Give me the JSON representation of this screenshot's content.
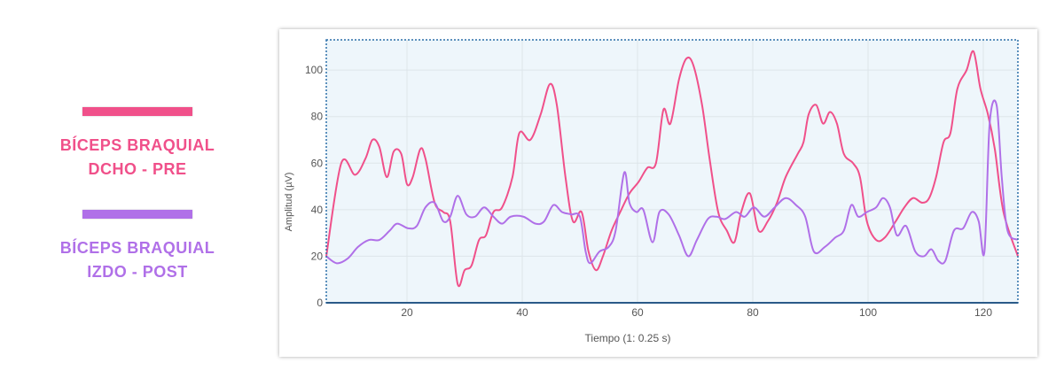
{
  "chart_data": {
    "type": "line",
    "xlabel": "Tiempo (1: 0.25 s)",
    "ylabel": "Amplitud (µV)",
    "xlim": [
      6,
      126
    ],
    "ylim": [
      0,
      113
    ],
    "xticks": [
      20,
      40,
      60,
      80,
      100,
      120
    ],
    "yticks": [
      0,
      20,
      40,
      60,
      80,
      100
    ],
    "grid": true,
    "legend": "left",
    "series": [
      {
        "name": "BÍCEPS BRAQUIAL DCHO - PRE",
        "color": "#f0508a",
        "x": [
          6,
          8.6,
          11,
          12.8,
          14,
          15.2,
          16.5,
          17.7,
          19,
          20,
          21,
          22.3,
          23.2,
          24.8,
          26.3,
          27.5,
          28.8,
          30,
          31.2,
          32.5,
          33.7,
          35,
          36.5,
          38.3,
          39.5,
          41.4,
          43.2,
          44.8,
          46,
          47.5,
          48.8,
          50.3,
          51.5,
          52.8,
          54,
          55.5,
          57,
          58.6,
          60.2,
          61.7,
          63.2,
          64.5,
          65.7,
          67.2,
          68.5,
          69.7,
          71.2,
          72.5,
          74,
          75.5,
          76.8,
          78,
          79.5,
          81,
          82.6,
          84.2,
          85.7,
          87.8,
          88.8,
          89.7,
          91,
          92.2,
          93.4,
          94.6,
          95.8,
          97.4,
          98.6,
          99.8,
          101.4,
          102.9,
          104.8,
          106.3,
          107.8,
          109.4,
          110.6,
          111.8,
          113.1,
          114.3,
          115.5,
          117.1,
          118.3,
          119.5,
          120.8,
          122,
          123.5,
          126
        ],
        "values": [
          20,
          60,
          55,
          62,
          70,
          67,
          54,
          65,
          64,
          51,
          54,
          66,
          62,
          43,
          39,
          35,
          8,
          14,
          16,
          27,
          29,
          39,
          41,
          54,
          73,
          70,
          81,
          94,
          85,
          54,
          35,
          39,
          22,
          14,
          20,
          31,
          39,
          47,
          52,
          58,
          60,
          83,
          77,
          96,
          105,
          102,
          85,
          62,
          39,
          31,
          26,
          39,
          47,
          31,
          35,
          43,
          54,
          64,
          69,
          81,
          85,
          77,
          82,
          77,
          64,
          60,
          54,
          35,
          27,
          28,
          35,
          41,
          45,
          43,
          45,
          54,
          69,
          73,
          92,
          100,
          108,
          92,
          81,
          66,
          39,
          20
        ]
      },
      {
        "name": "BÍCEPS BRAQUIAL IZDO - POST",
        "color": "#b070e8",
        "x": [
          6,
          7.8,
          9.7,
          11.5,
          13.4,
          15.2,
          17,
          18.3,
          20.2,
          21.7,
          23.2,
          24.8,
          26.3,
          27.5,
          28.8,
          30.3,
          31.8,
          33.4,
          35,
          36.5,
          38,
          40.2,
          42.3,
          43.8,
          45.4,
          46.9,
          48.5,
          50,
          51,
          51.8,
          53.4,
          55,
          56.2,
          57.7,
          58.6,
          59.8,
          61,
          62.6,
          63.8,
          65.4,
          67.2,
          68.8,
          70.3,
          72.2,
          73.7,
          75.2,
          77.1,
          78.6,
          80.2,
          82,
          83.8,
          85.7,
          87.5,
          89.1,
          90.6,
          92.5,
          94.3,
          95.8,
          97.1,
          98.3,
          99.8,
          101.4,
          102.6,
          103.8,
          105,
          106.6,
          108.2,
          109.7,
          111,
          112.2,
          113.4,
          114.9,
          116.5,
          118,
          119.2,
          120.2,
          121.1,
          122.3,
          123.2,
          124.2,
          126
        ],
        "values": [
          20,
          17,
          19,
          24,
          27,
          27,
          31,
          34,
          32,
          33,
          41,
          43,
          35,
          37,
          46,
          38,
          37,
          41,
          37,
          34,
          37,
          37,
          34,
          35,
          42,
          39,
          38,
          37,
          22,
          17,
          22,
          24,
          31,
          56,
          43,
          39,
          40,
          26,
          39,
          38,
          29,
          20,
          27,
          36,
          37,
          36,
          39,
          37,
          41,
          37,
          41,
          45,
          42,
          37,
          22,
          24,
          28,
          31,
          42,
          37,
          39,
          41,
          45,
          41,
          29,
          33,
          22,
          20,
          23,
          18,
          18,
          31,
          32,
          39,
          35,
          22,
          77,
          85,
          54,
          31,
          27
        ]
      }
    ]
  }
}
